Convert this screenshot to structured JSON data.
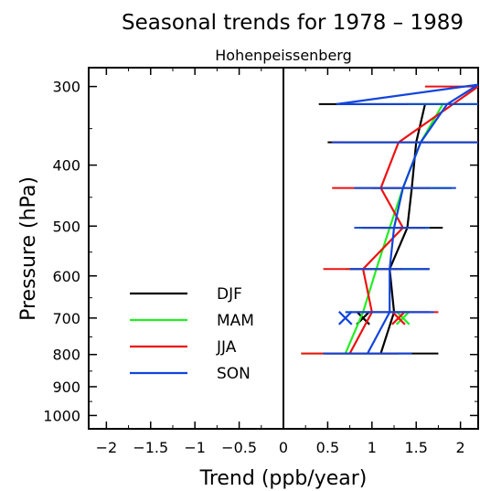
{
  "chart_data": {
    "type": "line",
    "title": "Seasonal trends for  1978 – 1989",
    "subtitle": "Hohenpeissenberg",
    "xlabel": "Trend (ppb/year)",
    "ylabel": "Pressure (hPa)",
    "xlim": [
      -2.2,
      2.2
    ],
    "ylim": [
      1050,
      280
    ],
    "yscale": "log",
    "x_ticks": [
      -2,
      -1.5,
      -1,
      -0.5,
      0,
      0.5,
      1,
      1.5,
      2
    ],
    "x_tick_labels": [
      "−2",
      "−1.5",
      "−1",
      "−0.5",
      "0",
      "0.5",
      "1",
      "1.5",
      "2"
    ],
    "y_ticks": [
      300,
      400,
      500,
      600,
      700,
      800,
      900,
      1000
    ],
    "y_tick_labels": [
      "300",
      "400",
      "500",
      "600",
      "700",
      "800",
      "900",
      "1000"
    ],
    "legend_position": "bottom-left",
    "series": [
      {
        "name": "DJF",
        "color": "#000000",
        "points": [
          [
            1.6,
            320
          ],
          [
            1.5,
            368
          ],
          [
            1.45,
            435
          ],
          [
            1.4,
            503
          ],
          [
            1.2,
            585
          ],
          [
            1.25,
            685
          ],
          [
            1.1,
            797
          ]
        ],
        "errors": [
          [
            1.6,
            0.4,
            2.2
          ],
          [
            1.5,
            0.5,
            2.2
          ],
          [
            1.45,
            1.0,
            1.9
          ],
          [
            1.4,
            1.1,
            1.8
          ],
          [
            1.2,
            0.75,
            1.65
          ],
          [
            1.25,
            0.85,
            1.65
          ],
          [
            1.1,
            0.45,
            1.75
          ]
        ],
        "marker": [
          0.9,
          700
        ]
      },
      {
        "name": "MAM",
        "color": "#22ee22",
        "points": [
          [
            1.8,
            320
          ],
          [
            1.55,
            368
          ],
          [
            1.35,
            435
          ],
          [
            1.2,
            503
          ],
          [
            1.05,
            585
          ],
          [
            0.9,
            685
          ],
          [
            0.7,
            797
          ]
        ],
        "errors": [
          [
            1.8,
            1.4,
            2.2
          ],
          [
            1.55,
            0.7,
            2.2
          ],
          [
            1.35,
            0.8,
            1.9
          ],
          [
            1.2,
            0.85,
            1.65
          ],
          [
            1.05,
            0.7,
            1.5
          ],
          [
            0.9,
            0.7,
            1.4
          ],
          [
            0.7,
            0.2,
            1.3
          ]
        ],
        "marker": [
          1.35,
          700
        ]
      },
      {
        "name": "JJA",
        "color": "#ee1111",
        "points": [
          [
            2.2,
            300
          ],
          [
            1.3,
            368
          ],
          [
            1.1,
            435
          ],
          [
            1.35,
            503
          ],
          [
            0.9,
            585
          ],
          [
            1.0,
            685
          ],
          [
            0.75,
            797
          ]
        ],
        "errors": [
          [
            2.2,
            1.6,
            2.2
          ],
          [
            1.3,
            0.55,
            2.2
          ],
          [
            1.1,
            0.55,
            1.65
          ],
          [
            1.35,
            0.9,
            1.6
          ],
          [
            0.9,
            0.45,
            1.35
          ],
          [
            1.0,
            0.75,
            1.75
          ],
          [
            0.75,
            0.2,
            1.3
          ]
        ],
        "marker": [
          1.3,
          700
        ]
      },
      {
        "name": "SON",
        "color": "#1144dd",
        "points": [
          [
            0.6,
            320
          ],
          [
            2.2,
            298
          ],
          [
            1.85,
            320
          ],
          [
            1.55,
            368
          ],
          [
            1.35,
            435
          ],
          [
            1.25,
            503
          ],
          [
            1.2,
            585
          ],
          [
            1.2,
            685
          ],
          [
            0.95,
            797
          ]
        ],
        "errors": [
          [
            1.85,
            0.6,
            2.2
          ],
          [
            1.55,
            0.55,
            2.2
          ],
          [
            1.35,
            0.8,
            1.95
          ],
          [
            1.25,
            0.8,
            1.65
          ],
          [
            1.2,
            0.75,
            1.65
          ],
          [
            1.2,
            0.7,
            1.7
          ],
          [
            0.95,
            0.45,
            1.45
          ]
        ],
        "marker": [
          0.7,
          700
        ]
      }
    ]
  }
}
